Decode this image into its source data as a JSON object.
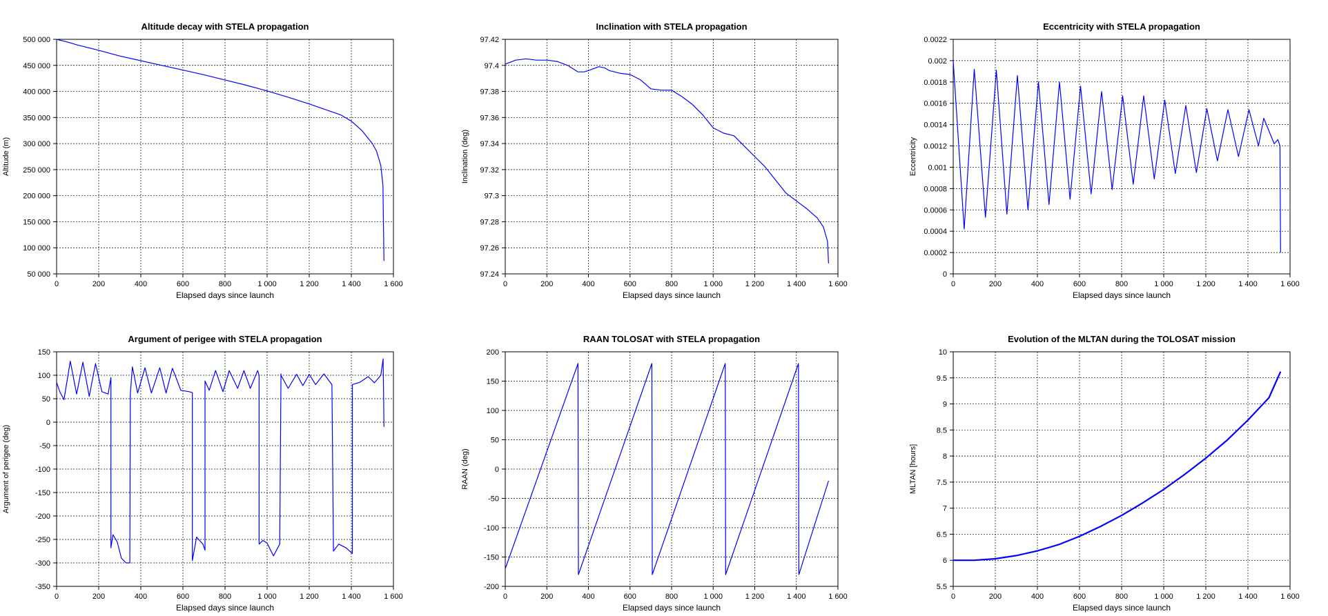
{
  "figure": {
    "colors": {
      "line": "#0000ff",
      "grid": "#000000",
      "axis": "#000000",
      "background": "#ffffff"
    }
  },
  "chart_data": [
    {
      "type": "line",
      "title": "Altitude decay with STELA propagation",
      "xlabel": "Elapsed days since launch",
      "ylabel": "Altitude (m)",
      "xlim": [
        0,
        1600
      ],
      "ylim": [
        50000,
        500000
      ],
      "xticks": [
        0,
        200,
        400,
        600,
        800,
        1000,
        1200,
        1400,
        1600
      ],
      "xtick_labels": [
        "0",
        "200",
        "400",
        "600",
        "800",
        "1 000",
        "1 200",
        "1 400",
        "1 600"
      ],
      "yticks": [
        50000,
        100000,
        150000,
        200000,
        250000,
        300000,
        350000,
        400000,
        450000,
        500000
      ],
      "ytick_labels": [
        "50 000",
        "100 000",
        "150 000",
        "200 000",
        "250 000",
        "300 000",
        "350 000",
        "400 000",
        "450 000",
        "500 000"
      ],
      "grid": true,
      "series": [
        {
          "x": [
            0,
            50,
            100,
            200,
            300,
            400,
            500,
            600,
            700,
            800,
            900,
            1000,
            1100,
            1200,
            1300,
            1350,
            1400,
            1450,
            1500,
            1520,
            1540,
            1550,
            1552,
            1555
          ],
          "y": [
            500000,
            495000,
            489000,
            479000,
            468000,
            459000,
            450000,
            441000,
            432000,
            422000,
            412000,
            401000,
            389000,
            376000,
            362000,
            355000,
            343000,
            325000,
            300000,
            285000,
            258000,
            220000,
            160000,
            75000
          ]
        }
      ]
    },
    {
      "type": "line",
      "title": "Inclination with STELA propagation",
      "xlabel": "Elapsed days since launch",
      "ylabel": "Inclination (deg)",
      "xlim": [
        0,
        1600
      ],
      "ylim": [
        97.24,
        97.42
      ],
      "xticks": [
        0,
        200,
        400,
        600,
        800,
        1000,
        1200,
        1400,
        1600
      ],
      "xtick_labels": [
        "0",
        "200",
        "400",
        "600",
        "800",
        "1 000",
        "1 200",
        "1 400",
        "1 600"
      ],
      "yticks": [
        97.24,
        97.26,
        97.28,
        97.3,
        97.32,
        97.34,
        97.36,
        97.38,
        97.4,
        97.42
      ],
      "ytick_labels": [
        "97.24",
        "97.26",
        "97.28",
        "97.3",
        "97.32",
        "97.34",
        "97.36",
        "97.38",
        "97.4",
        "97.42"
      ],
      "grid": true,
      "series": [
        {
          "x": [
            0,
            50,
            100,
            150,
            200,
            250,
            300,
            350,
            380,
            400,
            450,
            480,
            500,
            550,
            600,
            650,
            700,
            750,
            800,
            850,
            900,
            950,
            1000,
            1050,
            1100,
            1150,
            1200,
            1250,
            1300,
            1350,
            1400,
            1450,
            1500,
            1530,
            1550,
            1555
          ],
          "y": [
            97.401,
            97.404,
            97.405,
            97.404,
            97.404,
            97.403,
            97.4,
            97.395,
            97.395,
            97.396,
            97.399,
            97.398,
            97.396,
            97.394,
            97.393,
            97.389,
            97.382,
            97.381,
            97.381,
            97.376,
            97.37,
            97.362,
            97.352,
            97.348,
            97.346,
            97.338,
            97.33,
            97.322,
            97.312,
            97.302,
            97.296,
            97.29,
            97.283,
            97.276,
            97.265,
            97.248
          ]
        }
      ]
    },
    {
      "type": "line",
      "title": "Eccentricity with STELA propagation",
      "xlabel": "Elapsed days since launch",
      "ylabel": "Eccentricity",
      "xlim": [
        0,
        1600
      ],
      "ylim": [
        0,
        0.0022
      ],
      "xticks": [
        0,
        200,
        400,
        600,
        800,
        1000,
        1200,
        1400,
        1600
      ],
      "xtick_labels": [
        "0",
        "200",
        "400",
        "600",
        "800",
        "1 000",
        "1 200",
        "1 400",
        "1 600"
      ],
      "yticks": [
        0,
        0.0002,
        0.0004,
        0.0006,
        0.0008,
        0.001,
        0.0012,
        0.0014,
        0.0016,
        0.0018,
        0.002,
        0.0022
      ],
      "ytick_labels": [
        "0",
        "0.0002",
        "0.0004",
        "0.0006",
        "0.0008",
        "0.001",
        "0.0012",
        "0.0014",
        "0.0016",
        "0.0018",
        "0.002",
        "0.0022"
      ],
      "grid": true,
      "series": [
        {
          "x": [
            0,
            52,
            100,
            153,
            205,
            255,
            305,
            355,
            405,
            455,
            505,
            555,
            605,
            655,
            705,
            755,
            805,
            855,
            905,
            955,
            1005,
            1055,
            1105,
            1155,
            1205,
            1255,
            1305,
            1355,
            1405,
            1450,
            1475,
            1525,
            1542,
            1552,
            1555
          ],
          "y": [
            0.002,
            0.00042,
            0.00192,
            0.00053,
            0.00191,
            0.00056,
            0.00186,
            0.0006,
            0.0018,
            0.00065,
            0.0018,
            0.0007,
            0.00176,
            0.00075,
            0.00171,
            0.00079,
            0.00167,
            0.00084,
            0.00167,
            0.00089,
            0.00163,
            0.00094,
            0.00158,
            0.00095,
            0.00155,
            0.00106,
            0.00154,
            0.0011,
            0.00154,
            0.0012,
            0.00146,
            0.00122,
            0.00126,
            0.0012,
            0.0002
          ]
        }
      ]
    },
    {
      "type": "line",
      "title": "Argument of perigee with STELA propagation",
      "xlabel": "Elapsed days since launch",
      "ylabel": "Argument of perigee (deg)",
      "xlim": [
        0,
        1600
      ],
      "ylim": [
        -350,
        150
      ],
      "xticks": [
        0,
        200,
        400,
        600,
        800,
        1000,
        1200,
        1400,
        1600
      ],
      "xtick_labels": [
        "0",
        "200",
        "400",
        "600",
        "800",
        "1 000",
        "1 200",
        "1 400",
        "1 600"
      ],
      "yticks": [
        -350,
        -300,
        -250,
        -200,
        -150,
        -100,
        -50,
        0,
        50,
        100,
        150
      ],
      "ytick_labels": [
        "-350",
        "-300",
        "-250",
        "-200",
        "-150",
        "-100",
        "-50",
        "0",
        "50",
        "100",
        "150"
      ],
      "grid": true,
      "series": [
        {
          "x": [
            0,
            15,
            35,
            65,
            95,
            125,
            155,
            185,
            215,
            245,
            258,
            258,
            268,
            288,
            308,
            330,
            348,
            350,
            360,
            385,
            420,
            450,
            490,
            520,
            550,
            590,
            630,
            645,
            645,
            665,
            695,
            705,
            705,
            725,
            755,
            790,
            820,
            860,
            890,
            920,
            955,
            962,
            962,
            980,
            1000,
            1030,
            1060,
            1066,
            1066,
            1100,
            1140,
            1170,
            1200,
            1230,
            1270,
            1308,
            1315,
            1315,
            1340,
            1375,
            1400,
            1405,
            1405,
            1440,
            1480,
            1510,
            1540,
            1551,
            1555
          ],
          "y": [
            85,
            65,
            48,
            130,
            60,
            128,
            55,
            125,
            65,
            60,
            95,
            -268,
            -240,
            -255,
            -290,
            -300,
            -300,
            60,
            118,
            62,
            116,
            62,
            116,
            62,
            115,
            68,
            65,
            63,
            -295,
            -245,
            -260,
            -273,
            88,
            68,
            110,
            65,
            110,
            72,
            110,
            72,
            110,
            100,
            -260,
            -252,
            -258,
            -285,
            -260,
            103,
            100,
            72,
            102,
            78,
            102,
            80,
            103,
            80,
            -275,
            -275,
            -260,
            -268,
            -278,
            -280,
            80,
            85,
            97,
            84,
            100,
            135,
            -10
          ]
        }
      ]
    },
    {
      "type": "line",
      "title": "RAAN TOLOSAT with STELA propagation",
      "xlabel": "Elapsed days since launch",
      "ylabel": "RAAN (deg)",
      "xlim": [
        0,
        1600
      ],
      "ylim": [
        -200,
        200
      ],
      "xticks": [
        0,
        200,
        400,
        600,
        800,
        1000,
        1200,
        1400,
        1600
      ],
      "xtick_labels": [
        "0",
        "200",
        "400",
        "600",
        "800",
        "1 000",
        "1 200",
        "1 400",
        "1 600"
      ],
      "yticks": [
        -200,
        -150,
        -100,
        -50,
        0,
        50,
        100,
        150,
        200
      ],
      "ytick_labels": [
        "-200",
        "-150",
        "-100",
        "-50",
        "0",
        "50",
        "100",
        "150",
        "200"
      ],
      "grid": true,
      "series": [
        {
          "x": [
            0,
            350,
            352,
            705,
            707,
            1058,
            1060,
            1410,
            1412,
            1555
          ],
          "y": [
            -170,
            180,
            -180,
            180,
            -180,
            180,
            -180,
            180,
            -180,
            -20
          ]
        }
      ]
    },
    {
      "type": "line",
      "title": "Evolution of the MLTAN during the TOLOSAT mission",
      "xlabel": "Elapsed days since launch",
      "ylabel": "MLTAN [hours]",
      "xlim": [
        0,
        1600
      ],
      "ylim": [
        5.5,
        10
      ],
      "xticks": [
        0,
        200,
        400,
        600,
        800,
        1000,
        1200,
        1400,
        1600
      ],
      "xtick_labels": [
        "0",
        "200",
        "400",
        "600",
        "800",
        "1 000",
        "1 200",
        "1 400",
        "1 600"
      ],
      "yticks": [
        5.5,
        6,
        6.5,
        7,
        7.5,
        8,
        8.5,
        9,
        9.5,
        10
      ],
      "ytick_labels": [
        "5.5",
        "6",
        "6.5",
        "7",
        "7.5",
        "8",
        "8.5",
        "9",
        "9.5",
        "10"
      ],
      "grid": true,
      "series": [
        {
          "x": [
            0,
            100,
            200,
            300,
            400,
            500,
            600,
            700,
            800,
            900,
            1000,
            1100,
            1200,
            1300,
            1400,
            1500,
            1555
          ],
          "y": [
            6,
            6,
            6.03,
            6.09,
            6.18,
            6.3,
            6.46,
            6.65,
            6.86,
            7.1,
            7.36,
            7.65,
            7.96,
            8.3,
            8.69,
            9.12,
            9.62
          ]
        }
      ]
    }
  ]
}
